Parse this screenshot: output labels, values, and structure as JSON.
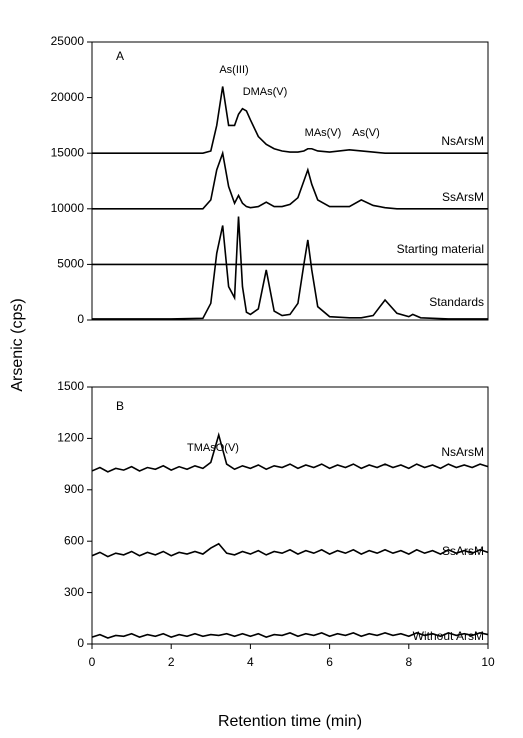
{
  "chart_data": [
    {
      "type": "line",
      "panel_label": "A",
      "ylabel": "Arsenic (cps)",
      "xlim": [
        0,
        10
      ],
      "ylim": [
        0,
        25000
      ],
      "yticks": [
        0,
        5000,
        10000,
        15000,
        20000,
        25000
      ],
      "annotations": [
        "As(III)",
        "DMAs(V)",
        "MAs(V)",
        "As(V)"
      ],
      "x": [
        0,
        1,
        2,
        2.8,
        3.0,
        3.15,
        3.3,
        3.45,
        3.6,
        3.7,
        3.8,
        3.9,
        4.0,
        4.2,
        4.4,
        4.6,
        4.8,
        5.0,
        5.2,
        5.35,
        5.45,
        5.55,
        5.7,
        6.0,
        6.5,
        6.8,
        7.1,
        7.4,
        7.7,
        8.0,
        8.1,
        8.3,
        9,
        10
      ],
      "series": [
        {
          "name": "NsArsM",
          "color": "#000000",
          "values": [
            15000,
            15000,
            15000,
            15000,
            15200,
            17500,
            21000,
            17500,
            17500,
            18500,
            19000,
            18800,
            18000,
            16500,
            15800,
            15400,
            15200,
            15100,
            15100,
            15200,
            15400,
            15400,
            15200,
            15100,
            15300,
            15200,
            15100,
            15000,
            15000,
            15000,
            15000,
            15000,
            15000,
            15000
          ]
        },
        {
          "name": "SsArsM",
          "color": "#000000",
          "values": [
            10000,
            10000,
            10000,
            10000,
            10800,
            13500,
            15000,
            12000,
            10500,
            11200,
            10500,
            10200,
            10100,
            10200,
            10600,
            10200,
            10200,
            10400,
            11000,
            12500,
            13500,
            12200,
            10800,
            10200,
            10200,
            10800,
            10300,
            10100,
            10000,
            10000,
            10000,
            10000,
            10000,
            10000
          ]
        },
        {
          "name": "Starting material",
          "color": "#000000",
          "values": [
            5000,
            5000,
            5000,
            5000,
            5000,
            5000,
            5000,
            5000,
            5000,
            5000,
            5000,
            5000,
            5000,
            5000,
            5000,
            5000,
            5000,
            5000,
            5000,
            5000,
            5000,
            5000,
            5000,
            5000,
            5000,
            5000,
            5000,
            5000,
            5000,
            5000,
            5000,
            5000,
            5000,
            5000
          ]
        },
        {
          "name": "Standards",
          "color": "#000000",
          "values": [
            100,
            100,
            100,
            150,
            1500,
            6000,
            8500,
            3000,
            2000,
            9300,
            3000,
            700,
            500,
            1000,
            4500,
            800,
            400,
            500,
            1500,
            5000,
            7200,
            4500,
            1200,
            300,
            200,
            200,
            400,
            1800,
            600,
            300,
            500,
            200,
            100,
            100
          ]
        }
      ]
    },
    {
      "type": "line",
      "panel_label": "B",
      "xlabel": "Retention time (min)",
      "xlim": [
        0,
        10
      ],
      "xticks": [
        0,
        2,
        4,
        6,
        8,
        10
      ],
      "ylim": [
        0,
        1500
      ],
      "yticks": [
        0,
        300,
        600,
        900,
        1200,
        1500
      ],
      "annotations": [
        "TMAsO(V)"
      ],
      "x": [
        0,
        0.2,
        0.4,
        0.6,
        0.8,
        1.0,
        1.2,
        1.4,
        1.6,
        1.8,
        2.0,
        2.2,
        2.4,
        2.6,
        2.8,
        3.0,
        3.2,
        3.4,
        3.6,
        3.8,
        4.0,
        4.2,
        4.4,
        4.6,
        4.8,
        5.0,
        5.2,
        5.4,
        5.6,
        5.8,
        6.0,
        6.2,
        6.4,
        6.6,
        6.8,
        7.0,
        7.2,
        7.4,
        7.6,
        7.8,
        8.0,
        8.2,
        8.4,
        8.6,
        8.8,
        9.0,
        9.2,
        9.4,
        9.6,
        9.8,
        10
      ],
      "series": [
        {
          "name": "NsArsM",
          "color": "#000000",
          "values": [
            1010,
            1030,
            1005,
            1025,
            1015,
            1035,
            1010,
            1030,
            1020,
            1040,
            1015,
            1035,
            1020,
            1040,
            1025,
            1060,
            1220,
            1050,
            1020,
            1040,
            1025,
            1045,
            1020,
            1040,
            1030,
            1050,
            1025,
            1045,
            1030,
            1050,
            1025,
            1045,
            1030,
            1050,
            1025,
            1045,
            1030,
            1050,
            1030,
            1045,
            1025,
            1050,
            1030,
            1045,
            1025,
            1050,
            1030,
            1045,
            1030,
            1050,
            1035
          ]
        },
        {
          "name": "SsArsM",
          "color": "#000000",
          "values": [
            515,
            535,
            510,
            530,
            520,
            540,
            515,
            535,
            520,
            540,
            515,
            535,
            525,
            540,
            525,
            560,
            585,
            530,
            520,
            540,
            525,
            545,
            520,
            540,
            530,
            550,
            525,
            545,
            530,
            550,
            525,
            545,
            530,
            550,
            525,
            545,
            530,
            550,
            530,
            545,
            525,
            550,
            530,
            545,
            525,
            550,
            530,
            545,
            530,
            550,
            535
          ]
        },
        {
          "name": "Without ArsM",
          "color": "#000000",
          "values": [
            40,
            55,
            35,
            50,
            45,
            60,
            40,
            55,
            45,
            60,
            40,
            55,
            45,
            60,
            45,
            55,
            50,
            60,
            45,
            60,
            45,
            60,
            40,
            55,
            50,
            65,
            45,
            60,
            50,
            65,
            45,
            60,
            50,
            65,
            45,
            60,
            50,
            65,
            50,
            60,
            45,
            65,
            50,
            60,
            45,
            65,
            50,
            60,
            50,
            65,
            55
          ]
        }
      ]
    }
  ]
}
